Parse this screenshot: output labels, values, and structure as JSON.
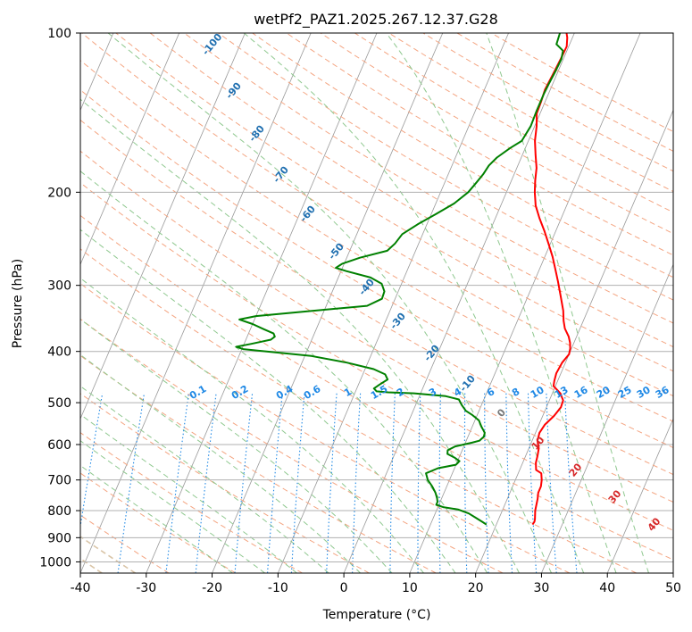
{
  "chart_data": {
    "type": "line",
    "title": "wetPf2_PAZ1.2025.267.12.37.G28",
    "xlabel": "Temperature (°C)",
    "ylabel": "Pressure (hPa)",
    "xlim": [
      -40,
      50
    ],
    "ylim": [
      1050,
      100
    ],
    "y_scale": "log",
    "x_ticks": [
      -40,
      -30,
      -20,
      -10,
      0,
      10,
      20,
      30,
      40,
      50
    ],
    "y_ticks": [
      100,
      200,
      300,
      400,
      500,
      600,
      700,
      800,
      900,
      1000
    ],
    "grid": true,
    "colors": {
      "temperature": "#ff0000",
      "dewpoint": "#008000",
      "isotherm": "#999999",
      "dry_adiabat": "#f4a582",
      "moist_adiabat": "#8fc88f",
      "mixing_ratio": "#1e88e5",
      "dry_adiabat_label": "#1f6fb0",
      "moist_adiabat_label": "#d62728",
      "mixing_ratio_label": "#1e88e5",
      "zero_label": "#777777"
    },
    "series": [
      {
        "key": "temperature",
        "points": [
          [
            25.5,
            850
          ],
          [
            25.6,
            840
          ],
          [
            25.5,
            830
          ],
          [
            25.0,
            800
          ],
          [
            24.6,
            760
          ],
          [
            24.3,
            740
          ],
          [
            24.3,
            720
          ],
          [
            24.0,
            700
          ],
          [
            23.5,
            680
          ],
          [
            22.5,
            670
          ],
          [
            22.0,
            650
          ],
          [
            21.8,
            630
          ],
          [
            21.5,
            610
          ],
          [
            20.8,
            590
          ],
          [
            20.6,
            570
          ],
          [
            20.9,
            550
          ],
          [
            21.7,
            530
          ],
          [
            22.2,
            510
          ],
          [
            22.1,
            495
          ],
          [
            21.2,
            480
          ],
          [
            19.7,
            465
          ],
          [
            19.5,
            455
          ],
          [
            19.3,
            440
          ],
          [
            19.5,
            420
          ],
          [
            20.0,
            405
          ],
          [
            19.8,
            395
          ],
          [
            19.4,
            385
          ],
          [
            18.8,
            375
          ],
          [
            17.7,
            362
          ],
          [
            17.0,
            350
          ],
          [
            16.3,
            335
          ],
          [
            15.0,
            315
          ],
          [
            13.6,
            295
          ],
          [
            12.6,
            282
          ],
          [
            11.2,
            265
          ],
          [
            9.9,
            252
          ],
          [
            8.3,
            237
          ],
          [
            6.7,
            224
          ],
          [
            5.3,
            212
          ],
          [
            4.3,
            200
          ],
          [
            3.6,
            190
          ],
          [
            3.0,
            180
          ],
          [
            2.0,
            170
          ],
          [
            1.0,
            160
          ],
          [
            0.3,
            150
          ],
          [
            -0.5,
            142
          ],
          [
            -0.6,
            135
          ],
          [
            -0.8,
            128
          ],
          [
            -0.6,
            120
          ],
          [
            -0.4,
            112
          ],
          [
            -0.3,
            106
          ],
          [
            -0.8,
            102
          ],
          [
            -1.2,
            100
          ]
        ]
      },
      {
        "key": "dewpoint",
        "points": [
          [
            18.5,
            850
          ],
          [
            17.7,
            840
          ],
          [
            16.4,
            825
          ],
          [
            15.1,
            810
          ],
          [
            13.2,
            796
          ],
          [
            10.8,
            788
          ],
          [
            9.6,
            780
          ],
          [
            9.6,
            770
          ],
          [
            9.3,
            758
          ],
          [
            8.7,
            740
          ],
          [
            7.8,
            720
          ],
          [
            6.7,
            700
          ],
          [
            6.0,
            680
          ],
          [
            7.5,
            665
          ],
          [
            10.0,
            655
          ],
          [
            10.3,
            645
          ],
          [
            9.3,
            635
          ],
          [
            8.0,
            625
          ],
          [
            7.8,
            615
          ],
          [
            8.7,
            605
          ],
          [
            11.0,
            595
          ],
          [
            12.0,
            590
          ],
          [
            12.4,
            580
          ],
          [
            12.3,
            570
          ],
          [
            11.4,
            555
          ],
          [
            10.6,
            540
          ],
          [
            9.3,
            528
          ],
          [
            8.0,
            518
          ],
          [
            7.0,
            505
          ],
          [
            6.2,
            493
          ],
          [
            4.0,
            486
          ],
          [
            -1.0,
            480
          ],
          [
            -5.0,
            478
          ],
          [
            -6.8,
            476
          ],
          [
            -7.4,
            470
          ],
          [
            -6.8,
            462
          ],
          [
            -5.9,
            452
          ],
          [
            -6.6,
            442
          ],
          [
            -8.7,
            432
          ],
          [
            -13.2,
            420
          ],
          [
            -19.0,
            408
          ],
          [
            -29.8,
            396
          ],
          [
            -31.0,
            392
          ],
          [
            -28.9,
            387
          ],
          [
            -26.2,
            380
          ],
          [
            -25.8,
            375
          ],
          [
            -26.2,
            370
          ],
          [
            -28.0,
            363
          ],
          [
            -30.0,
            355
          ],
          [
            -32.3,
            348
          ],
          [
            -30.0,
            343
          ],
          [
            -22.5,
            336
          ],
          [
            -13.8,
            328
          ],
          [
            -12.0,
            318
          ],
          [
            -12.1,
            308
          ],
          [
            -13.0,
            298
          ],
          [
            -15.1,
            290
          ],
          [
            -19.2,
            282
          ],
          [
            -21.0,
            278
          ],
          [
            -20.3,
            273
          ],
          [
            -18.0,
            266
          ],
          [
            -14.3,
            258
          ],
          [
            -13.6,
            250
          ],
          [
            -13.1,
            240
          ],
          [
            -11.4,
            230
          ],
          [
            -9.3,
            220
          ],
          [
            -7.2,
            210
          ],
          [
            -5.8,
            200
          ],
          [
            -5.2,
            192
          ],
          [
            -4.7,
            185
          ],
          [
            -4.4,
            178
          ],
          [
            -3.7,
            172
          ],
          [
            -2.3,
            165
          ],
          [
            -1.0,
            160
          ],
          [
            -0.6,
            150
          ],
          [
            -0.7,
            140
          ],
          [
            -0.7,
            130
          ],
          [
            -0.6,
            125
          ],
          [
            -0.4,
            118
          ],
          [
            -0.3,
            112
          ],
          [
            -0.6,
            108
          ],
          [
            -2.0,
            105
          ],
          [
            -2.2,
            100
          ]
        ]
      }
    ],
    "dry_adiabat_labels": [
      "-100",
      "-90",
      "-80",
      "-70",
      "-60",
      "-50",
      "-40",
      "-30",
      "-20",
      "-10"
    ],
    "moist_adiabat_labels": [
      "0",
      "10",
      "20",
      "30",
      "40"
    ],
    "mixing_ratio_labels": [
      "0.1",
      "0.2",
      "0.4",
      "0.6",
      "1",
      "1.5",
      "2",
      "3",
      "4",
      "6",
      "8",
      "10",
      "13",
      "16",
      "20",
      "25",
      "30",
      "36"
    ]
  }
}
